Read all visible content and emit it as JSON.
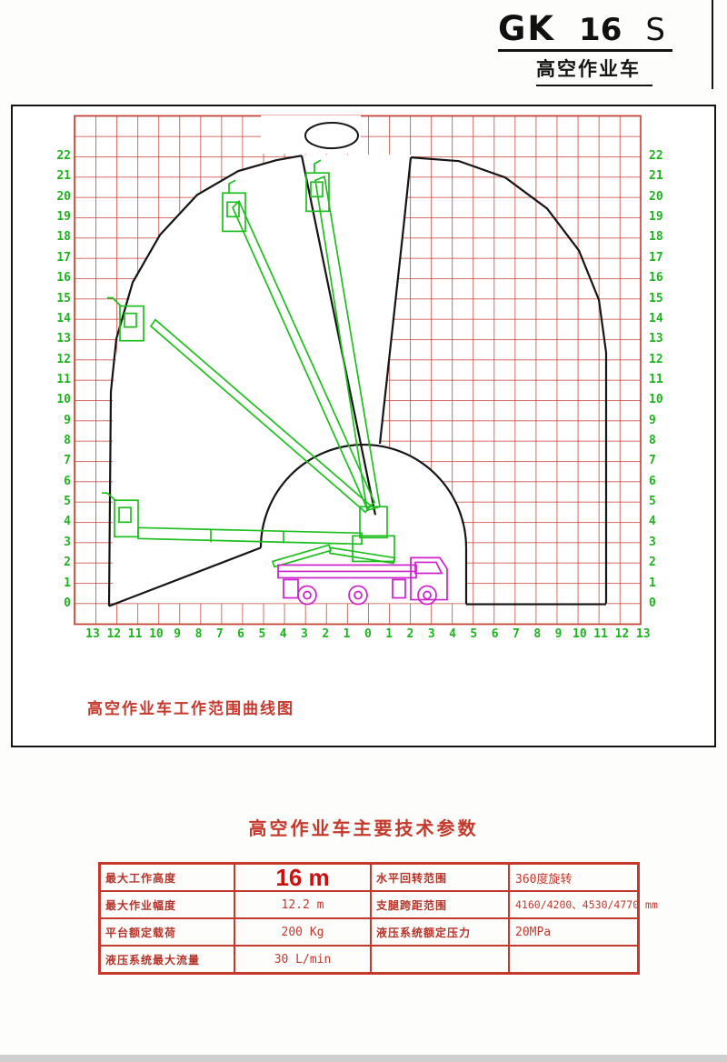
{
  "header": {
    "model_prefix": "GK",
    "model_number": "16",
    "model_suffix": "S",
    "subtitle": "高空作业车"
  },
  "diagram": {
    "caption": "高空作业车工作范围曲线图",
    "y_axis_labels": [
      "22",
      "21",
      "20",
      "19",
      "18",
      "17",
      "16",
      "15",
      "14",
      "13",
      "12",
      "11",
      "10",
      "9",
      "8",
      "7",
      "6",
      "5",
      "4",
      "3",
      "2",
      "1",
      "0"
    ],
    "x_axis_labels": [
      "13",
      "12",
      "11",
      "10",
      "9",
      "8",
      "7",
      "6",
      "5",
      "4",
      "3",
      "2",
      "1",
      "0",
      "1",
      "2",
      "3",
      "4",
      "5",
      "6",
      "7",
      "8",
      "9",
      "10",
      "11",
      "12",
      "13"
    ],
    "colors": {
      "grid": "#c63b30",
      "axis_text": "#1db41d",
      "envelope": "#151515",
      "boom_green": "#1ebe1e",
      "truck_magenta": "#cc22cc",
      "table_red": "#c5382c"
    }
  },
  "table": {
    "title": "高空作业车主要技术参数",
    "rows": [
      {
        "label1": "最大工作高度",
        "value1": "16 m",
        "label2": "水平回转范围",
        "value2": "360度旋转"
      },
      {
        "label1": "最大作业幅度",
        "value1": "12.2 m",
        "label2": "支腿跨距范围",
        "value2": "4160/4200、4530/4770 mm"
      },
      {
        "label1": "平台额定载荷",
        "value1": "200 Kg",
        "label2": "液压系统额定压力",
        "value2": "20MPa"
      },
      {
        "label1": "液压系统最大流量",
        "value1": "30 L/min",
        "label2": "",
        "value2": ""
      }
    ]
  }
}
